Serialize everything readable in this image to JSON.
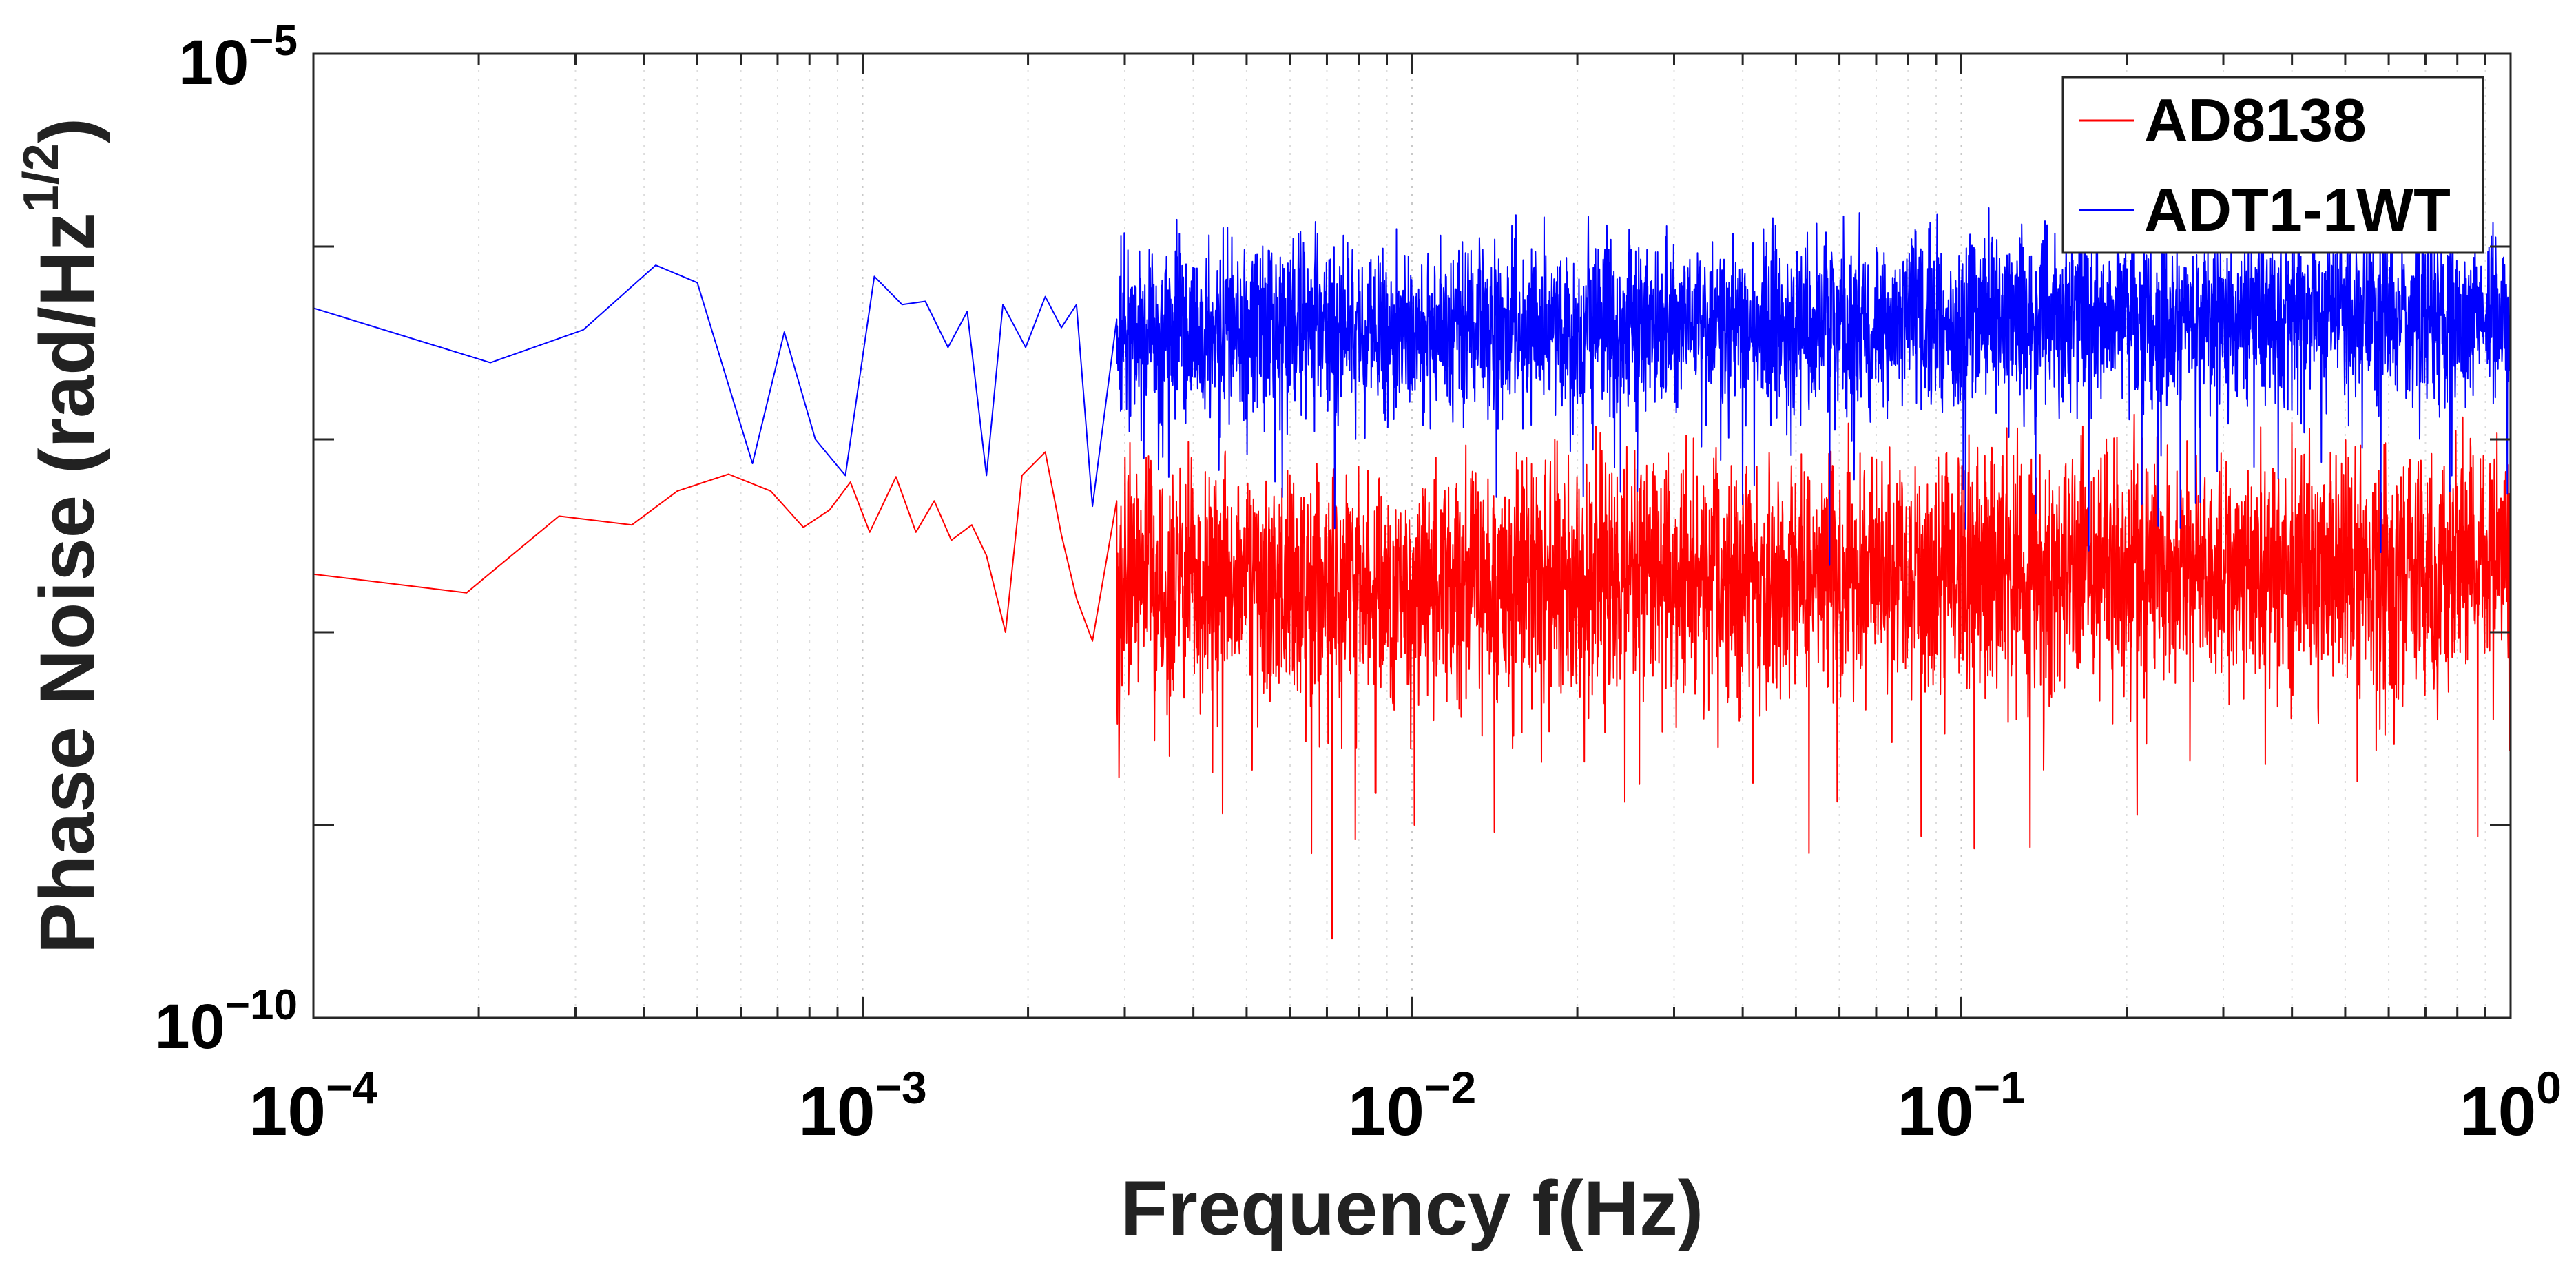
{
  "chart_data": {
    "type": "line",
    "title": "",
    "xlabel": "Frequency f(Hz)",
    "ylabel": {
      "main": "Phase Noise (rad/Hz",
      "superscript": "1/2",
      "close": ")"
    },
    "x_scale": "log",
    "y_scale": "log",
    "xlim": [
      0.0001,
      1
    ],
    "ylim": [
      1e-10,
      1e-05
    ],
    "grid": "x-only dotted",
    "x_ticks": [
      {
        "value": 0.0001,
        "base": "10",
        "exp": "−4"
      },
      {
        "value": 0.001,
        "base": "10",
        "exp": "−3"
      },
      {
        "value": 0.01,
        "base": "10",
        "exp": "−2"
      },
      {
        "value": 0.1,
        "base": "10",
        "exp": "−1"
      },
      {
        "value": 1,
        "base": "10",
        "exp": "0"
      }
    ],
    "y_ticks": [
      {
        "value": 1e-10,
        "base": "10",
        "exp": "−10"
      },
      {
        "value": 1e-05,
        "base": "10",
        "exp": "−5"
      }
    ],
    "legend_position": "top-right",
    "series": [
      {
        "name": "AD8138",
        "color": "#ff0000",
        "log10_mean_start": -7.78,
        "log10_mean_end": -7.65,
        "log10_spread": 0.3,
        "points": [
          {
            "x": 0.0001,
            "y": 2e-08
          },
          {
            "x": 0.00019,
            "y": 1.6e-08
          },
          {
            "x": 0.00028,
            "y": 4e-08
          },
          {
            "x": 0.00038,
            "y": 3.6e-08
          },
          {
            "x": 0.00046,
            "y": 5.4e-08
          },
          {
            "x": 0.00057,
            "y": 6.6e-08
          },
          {
            "x": 0.00068,
            "y": 5.4e-08
          },
          {
            "x": 0.00078,
            "y": 3.5e-08
          },
          {
            "x": 0.00087,
            "y": 4.3e-08
          },
          {
            "x": 0.00095,
            "y": 6e-08
          },
          {
            "x": 0.00103,
            "y": 3.3e-08
          },
          {
            "x": 0.00115,
            "y": 6.4e-08
          },
          {
            "x": 0.00125,
            "y": 3.3e-08
          },
          {
            "x": 0.00135,
            "y": 4.8e-08
          },
          {
            "x": 0.00145,
            "y": 3e-08
          },
          {
            "x": 0.00158,
            "y": 3.6e-08
          },
          {
            "x": 0.00168,
            "y": 2.5e-08
          },
          {
            "x": 0.00182,
            "y": 1e-08
          },
          {
            "x": 0.00195,
            "y": 6.5e-08
          },
          {
            "x": 0.00215,
            "y": 8.6e-08
          },
          {
            "x": 0.0023,
            "y": 3.2e-08
          },
          {
            "x": 0.00245,
            "y": 1.5e-08
          },
          {
            "x": 0.00262,
            "y": 9e-09
          },
          {
            "x": 0.0029,
            "y": 4.8e-08
          }
        ]
      },
      {
        "name": "ADT1-1WT",
        "color": "#0000ff",
        "log10_mean_start": -6.45,
        "log10_mean_end": -6.35,
        "log10_spread": 0.22,
        "points": [
          {
            "x": 0.0001,
            "y": 4.8e-07
          },
          {
            "x": 0.00021,
            "y": 2.5e-07
          },
          {
            "x": 0.00031,
            "y": 3.7e-07
          },
          {
            "x": 0.00042,
            "y": 8e-07
          },
          {
            "x": 0.0005,
            "y": 6.5e-07
          },
          {
            "x": 0.00063,
            "y": 7.5e-08
          },
          {
            "x": 0.00072,
            "y": 3.6e-07
          },
          {
            "x": 0.00082,
            "y": 1e-07
          },
          {
            "x": 0.00093,
            "y": 6.5e-08
          },
          {
            "x": 0.00105,
            "y": 7e-07
          },
          {
            "x": 0.00118,
            "y": 5e-07
          },
          {
            "x": 0.0013,
            "y": 5.2e-07
          },
          {
            "x": 0.00143,
            "y": 3e-07
          },
          {
            "x": 0.00155,
            "y": 4.6e-07
          },
          {
            "x": 0.00168,
            "y": 6.5e-08
          },
          {
            "x": 0.0018,
            "y": 5e-07
          },
          {
            "x": 0.00198,
            "y": 3e-07
          },
          {
            "x": 0.00215,
            "y": 5.5e-07
          },
          {
            "x": 0.0023,
            "y": 3.8e-07
          },
          {
            "x": 0.00245,
            "y": 5e-07
          },
          {
            "x": 0.00262,
            "y": 4.5e-08
          },
          {
            "x": 0.0029,
            "y": 4.2e-07
          }
        ]
      }
    ]
  }
}
